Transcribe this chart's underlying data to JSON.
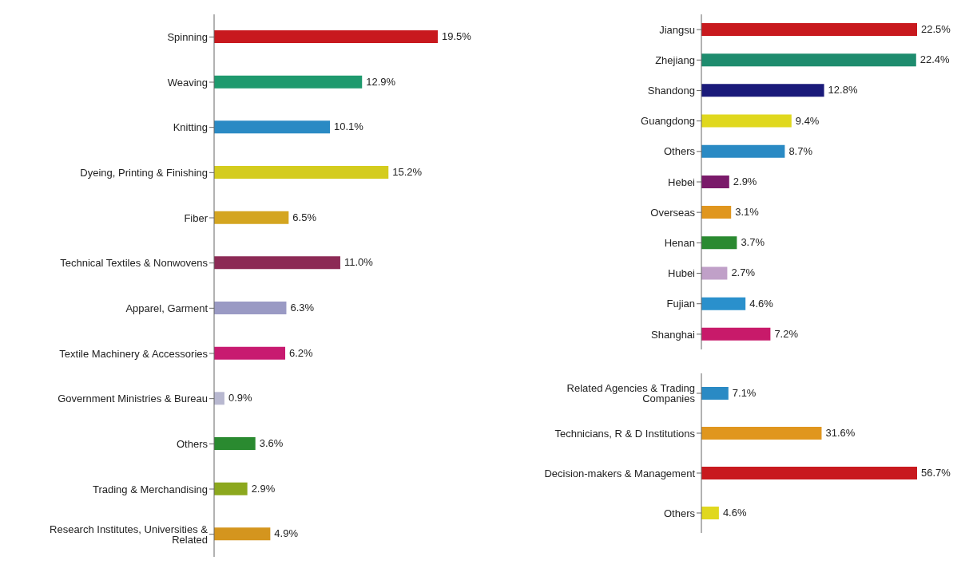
{
  "chart_data": [
    {
      "type": "bar",
      "orientation": "horizontal",
      "legend": false,
      "grid": false,
      "categories": [
        "Spinning",
        "Weaving",
        "Knitting",
        "Dyeing, Printing & Finishing",
        "Fiber",
        "Technical Textiles & Nonwovens",
        "Apparel, Garment",
        "Textile Machinery & Accessories",
        "Government Ministries & Bureau",
        "Others",
        "Trading & Merchandising",
        "Research Institutes, Universities & Related"
      ],
      "values": [
        19.5,
        12.9,
        10.1,
        15.2,
        6.5,
        11.0,
        6.3,
        6.2,
        0.9,
        3.6,
        2.9,
        4.9
      ],
      "value_labels": [
        "19.5%",
        "12.9%",
        "10.1%",
        "15.2%",
        "6.5%",
        "11.0%",
        "6.3%",
        "6.2%",
        "0.9%",
        "3.6%",
        "2.9%",
        "4.9%"
      ],
      "colors": [
        "#c8191e",
        "#1f9a6e",
        "#2a8ac4",
        "#d4cc1e",
        "#d4a520",
        "#8c2a55",
        "#9a9ac4",
        "#c81a70",
        "#b8b8d0",
        "#2a8a30",
        "#8ca81e",
        "#d4951e"
      ]
    },
    {
      "type": "bar",
      "orientation": "horizontal",
      "legend": false,
      "grid": false,
      "categories": [
        "Jiangsu",
        "Zhejiang",
        "Shandong",
        "Guangdong",
        "Others",
        "Hebei",
        "Overseas",
        "Henan",
        "Hubei",
        "Fujian",
        "Shanghai"
      ],
      "values": [
        22.5,
        22.4,
        12.8,
        9.4,
        8.7,
        2.9,
        3.1,
        3.7,
        2.7,
        4.6,
        7.2
      ],
      "value_labels": [
        "22.5%",
        "22.4%",
        "12.8%",
        "9.4%",
        "8.7%",
        "2.9%",
        "3.1%",
        "3.7%",
        "2.7%",
        "4.6%",
        "7.2%"
      ],
      "colors": [
        "#c8191e",
        "#1e8c6e",
        "#1a1a7a",
        "#e0d81e",
        "#2a8ac4",
        "#7a1a6a",
        "#e0961e",
        "#2a8a30",
        "#c0a0c8",
        "#2a90cc",
        "#c81a6a"
      ]
    },
    {
      "type": "bar",
      "orientation": "horizontal",
      "legend": false,
      "grid": false,
      "categories": [
        "Related Agencies & Trading Companies",
        "Technicians, R & D Institutions",
        "Decision-makers & Management",
        "Others"
      ],
      "values": [
        7.1,
        31.6,
        56.7,
        4.6
      ],
      "value_labels": [
        "7.1%",
        "31.6%",
        "56.7%",
        "4.6%"
      ],
      "colors": [
        "#2a8ac4",
        "#e0961e",
        "#c8191e",
        "#e0d81e"
      ]
    }
  ]
}
